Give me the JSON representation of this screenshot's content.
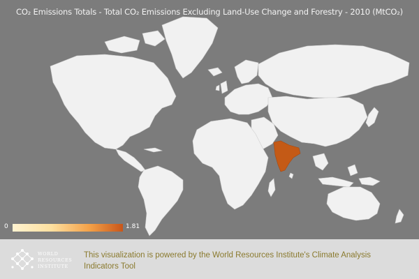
{
  "map": {
    "title": "CO₂ Emissions Totals - Total CO₂ Emissions Excluding Land-Use Change and Forestry - 2010 (MtCO₂)",
    "highlighted_region": "India",
    "colors": {
      "background": "#7c7c7c",
      "land": "#f1f1f1",
      "highlight": "#c45a16"
    }
  },
  "legend": {
    "min_label": "0",
    "max_label": "1.81",
    "colors": {
      "low": "#fff3d0",
      "high": "#c8561a"
    }
  },
  "footer": {
    "logo_icon": "wri-logo-icon",
    "logo_lines": [
      "WORLD",
      "RESOURCES",
      "INSTITUTE"
    ],
    "credit": "This visualization is powered by the World Resources Institute's Climate Analysis Indicators Tool"
  }
}
